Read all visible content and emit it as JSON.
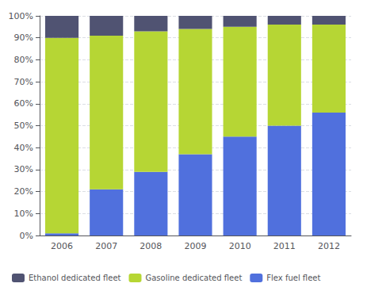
{
  "chart_data": {
    "type": "bar",
    "categories": [
      "2006",
      "2007",
      "2008",
      "2009",
      "2010",
      "2011",
      "2012"
    ],
    "series": [
      {
        "name": "Flex fuel fleet",
        "values": [
          1,
          21,
          29,
          37,
          45,
          50,
          56
        ]
      },
      {
        "name": "Gasoline dedicated fleet",
        "values": [
          89,
          70,
          64,
          57,
          50,
          46,
          40
        ]
      },
      {
        "name": "Ethanol dedicated fleet",
        "values": [
          10,
          9,
          7,
          6,
          5,
          4,
          4
        ]
      }
    ],
    "stacked": true,
    "ylim": [
      0,
      100
    ],
    "yticks": [
      {
        "value": 0,
        "label": "0%"
      },
      {
        "value": 10,
        "label": "10%"
      },
      {
        "value": 20,
        "label": "20%"
      },
      {
        "value": 30,
        "label": "30%"
      },
      {
        "value": 40,
        "label": "40%"
      },
      {
        "value": 50,
        "label": "50%"
      },
      {
        "value": 60,
        "label": "60%"
      },
      {
        "value": 70,
        "label": "70%"
      },
      {
        "value": 80,
        "label": "80%"
      },
      {
        "value": 90,
        "label": "90%"
      },
      {
        "value": 100,
        "label": "100%"
      }
    ],
    "grid": true,
    "legend": "bottom"
  }
}
